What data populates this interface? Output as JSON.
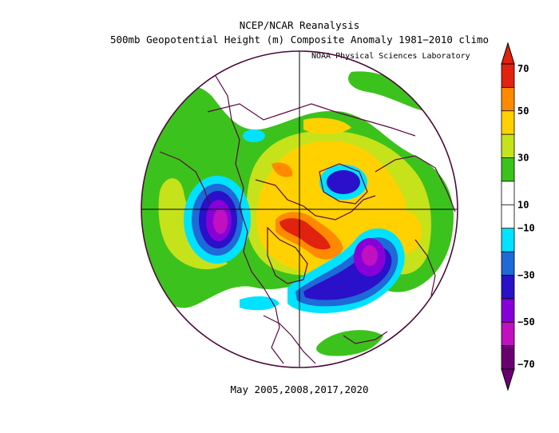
{
  "header": {
    "title_line1": "NCEP/NCAR Reanalysis",
    "title_line2": "500mb Geopotential Height (m) Composite Anomaly 1981−2010 climo",
    "credit": "NOAA Physical Sciences Laboratory"
  },
  "caption": "May 2005,2008,2017,2020",
  "colorbar": {
    "ticks": [
      "70",
      "50",
      "30",
      "10",
      "−10",
      "−30",
      "−50",
      "−70"
    ],
    "colors": [
      "#e0220f",
      "#ff8a00",
      "#ffd100",
      "#c6e21a",
      "#3cc21c",
      "#ffffff",
      "#ffffff",
      "#00e2ff",
      "#1e6ad8",
      "#2a10c8",
      "#8800d8",
      "#c010c0",
      "#6a0070"
    ]
  },
  "map": {
    "projection": "north-polar-stereographic",
    "anomaly_colors": {
      "pos10": "#3cc21c",
      "pos20": "#c6e21a",
      "pos30": "#ffd100",
      "pos50": "#ff8a00",
      "pos70": "#e0220f",
      "neg10": "#00e2ff",
      "neg20": "#1e6ad8",
      "neg30": "#2a10c8",
      "neg50": "#8800d8",
      "neg60": "#c010c0"
    }
  }
}
